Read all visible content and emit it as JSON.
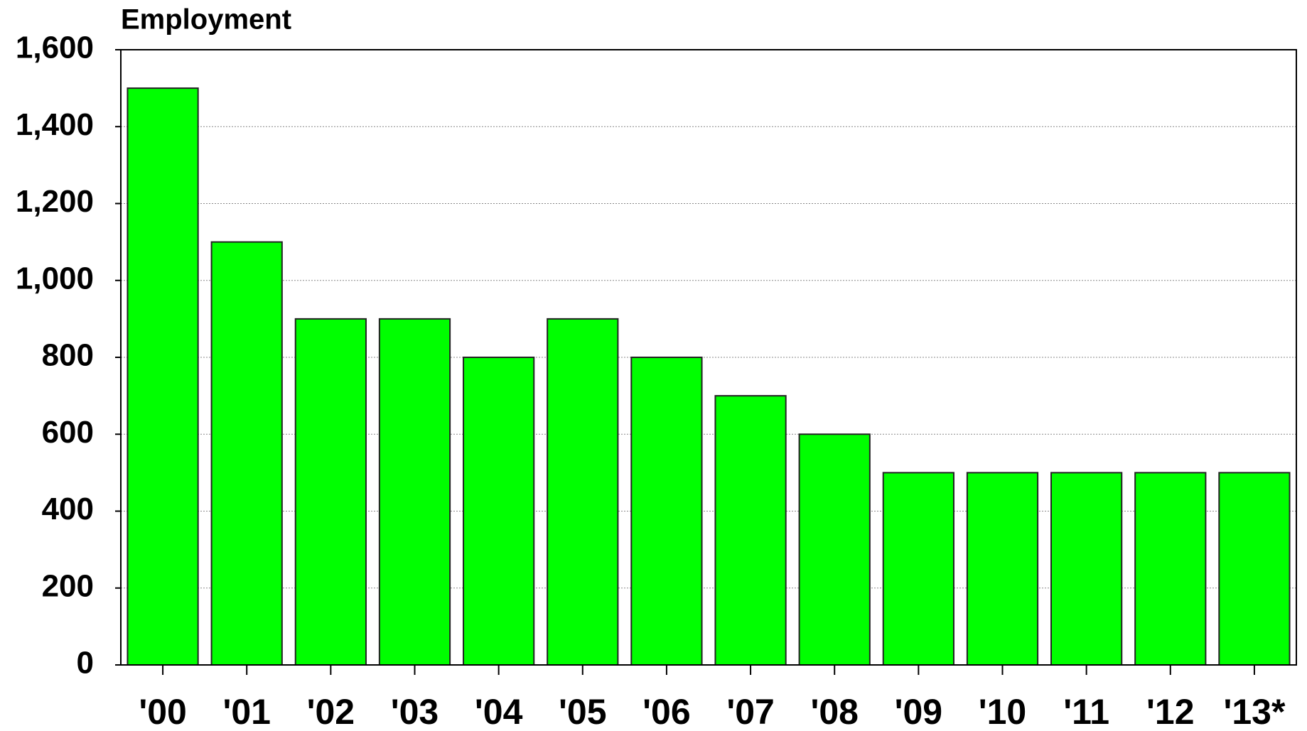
{
  "chart_data": {
    "type": "bar",
    "title": "Employment",
    "categories": [
      "'00",
      "'01",
      "'02",
      "'03",
      "'04",
      "'05",
      "'06",
      "'07",
      "'08",
      "'09",
      "'10",
      "'11",
      "'12",
      "'13*"
    ],
    "values": [
      1500,
      1100,
      900,
      900,
      800,
      900,
      800,
      700,
      600,
      500,
      500,
      500,
      500,
      500
    ],
    "color": "#00ff00",
    "ylim": [
      0,
      1600
    ],
    "yticks": [
      0,
      200,
      400,
      600,
      800,
      {
        "value": 1000,
        "label": "1,000"
      },
      {
        "value": 1200,
        "label": "1,200"
      },
      {
        "value": 1400,
        "label": "1,400"
      },
      {
        "value": 1600,
        "label": "1,600"
      }
    ],
    "grid": true
  }
}
